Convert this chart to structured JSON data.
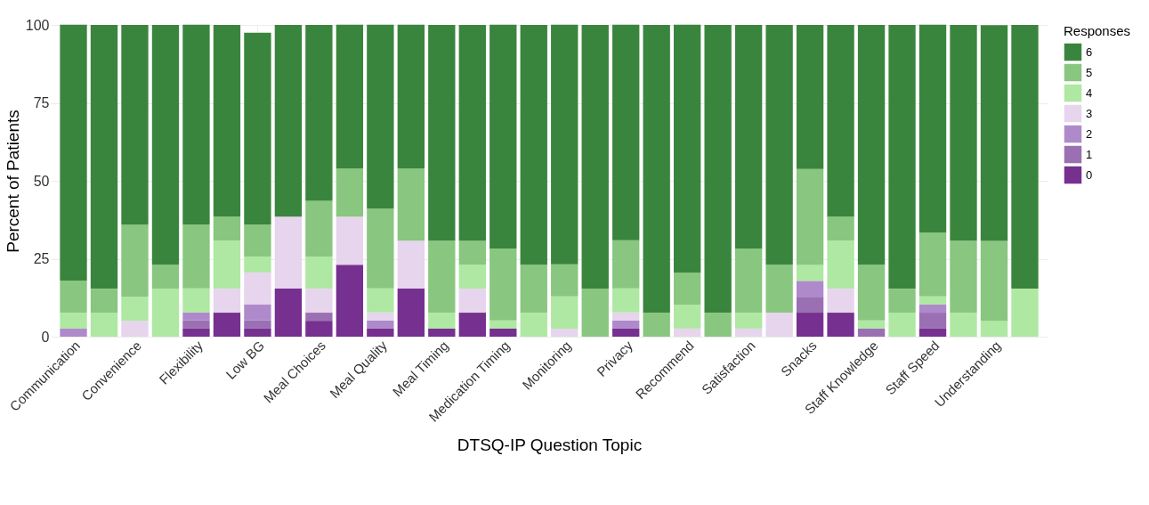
{
  "chart_data": {
    "type": "bar",
    "stacked": true,
    "xlabel": "DTSQ-IP Question Topic",
    "ylabel": "Percent of Patients",
    "legend_title": "Responses",
    "legend": "right",
    "grid": true,
    "categories": [
      "Communication",
      null,
      "Convenience",
      null,
      "Flexibility",
      null,
      "Low BG",
      null,
      "Meal Choices",
      null,
      "Meal Quality",
      null,
      "Meal Timing",
      null,
      "Medication Timing",
      null,
      "Monitoring",
      null,
      "Privacy",
      null,
      "Recommend",
      null,
      "Satisfaction",
      null,
      "Snacks",
      null,
      "Staff Knowledge",
      null,
      "Staff Speed",
      null,
      "Understanding",
      null
    ],
    "ylim": [
      0,
      100
    ],
    "yticks": [
      0,
      25,
      50,
      75,
      100
    ],
    "series": [
      {
        "name": "0",
        "color": "#76308f",
        "values": [
          0,
          0,
          0,
          0,
          2.6,
          7.7,
          2.6,
          15.4,
          5.1,
          23.1,
          2.6,
          15.4,
          2.6,
          7.7,
          2.6,
          0,
          0,
          0,
          2.6,
          0,
          0,
          0,
          0,
          0,
          7.7,
          7.7,
          0,
          0,
          2.6,
          0,
          0,
          0
        ]
      },
      {
        "name": "1",
        "color": "#9a70b3",
        "values": [
          0,
          0,
          0,
          0,
          2.6,
          0,
          2.6,
          0,
          2.6,
          0,
          0,
          0,
          0,
          0,
          0,
          0,
          0,
          0,
          0,
          0,
          0,
          0,
          0,
          0,
          5.1,
          0,
          2.6,
          0,
          5.1,
          0,
          0,
          0
        ]
      },
      {
        "name": "2",
        "color": "#ae8acb",
        "values": [
          2.6,
          0,
          0,
          0,
          2.6,
          0,
          5.1,
          0,
          0,
          0,
          2.6,
          0,
          0,
          0,
          0,
          0,
          0,
          0,
          2.6,
          0,
          0,
          0,
          0,
          0,
          5.1,
          0,
          0,
          0,
          2.6,
          0,
          0,
          0
        ]
      },
      {
        "name": "3",
        "color": "#e6d5ec",
        "values": [
          0,
          0,
          5.1,
          0,
          0,
          7.7,
          10.3,
          23.1,
          7.7,
          15.4,
          2.6,
          15.4,
          0,
          7.7,
          0,
          0,
          2.6,
          0,
          2.6,
          0,
          2.6,
          0,
          2.6,
          7.7,
          0,
          7.7,
          0,
          0,
          0,
          0,
          0,
          0
        ]
      },
      {
        "name": "4",
        "color": "#aee8a2",
        "values": [
          5.1,
          7.7,
          7.7,
          15.4,
          7.7,
          15.4,
          5.1,
          0,
          10.3,
          0,
          7.7,
          0,
          5.1,
          7.7,
          2.6,
          7.7,
          10.3,
          0,
          7.7,
          0,
          7.7,
          0,
          5.1,
          0,
          5.1,
          15.4,
          2.6,
          7.7,
          2.6,
          7.7,
          5.1,
          15.4
        ]
      },
      {
        "name": "5",
        "color": "#89c67f",
        "values": [
          10.3,
          7.7,
          23.1,
          7.7,
          20.5,
          7.7,
          10.3,
          0,
          17.9,
          15.4,
          25.6,
          23.1,
          23.1,
          7.7,
          23.1,
          15.4,
          10.3,
          15.4,
          15.4,
          7.7,
          10.3,
          7.7,
          20.5,
          15.4,
          30.8,
          7.7,
          17.9,
          7.7,
          20.5,
          23.1,
          25.6,
          0
        ]
      },
      {
        "name": "6",
        "color": "#3a853d",
        "values": [
          82.1,
          84.6,
          64.1,
          76.9,
          64.1,
          61.5,
          61.5,
          61.5,
          56.4,
          46.2,
          59.0,
          46.2,
          69.2,
          69.2,
          71.8,
          76.9,
          76.9,
          84.6,
          69.2,
          92.3,
          79.5,
          92.3,
          71.8,
          76.9,
          46.2,
          61.5,
          76.9,
          84.6,
          66.7,
          69.2,
          69.2,
          84.6
        ]
      }
    ]
  }
}
